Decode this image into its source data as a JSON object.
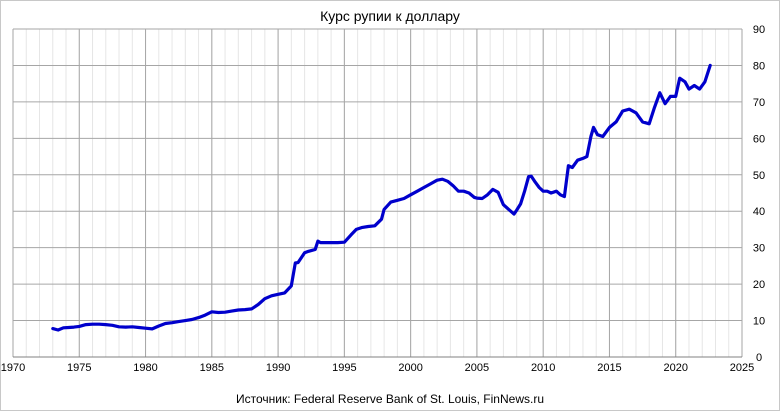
{
  "chart_data": {
    "type": "line",
    "title": "Курс рупии к доллару",
    "source": "Источник: Federal Reserve Bank of St. Louis, FinNews.ru",
    "xlabel": "",
    "ylabel": "",
    "xlim": [
      1970,
      2025
    ],
    "ylim": [
      0,
      90
    ],
    "x_ticks": [
      "1970",
      "1975",
      "1980",
      "1985",
      "1990",
      "1995",
      "2000",
      "2005",
      "2010",
      "2015",
      "2020",
      "2025"
    ],
    "y_ticks": [
      "0",
      "10",
      "20",
      "30",
      "40",
      "50",
      "60",
      "70",
      "80",
      "90"
    ],
    "grid": true,
    "legend": "none",
    "line_color": "#0000cc",
    "series": [
      {
        "x": [
          1973.0,
          1973.4,
          1973.8,
          1974.2,
          1974.6,
          1975.0,
          1975.5,
          1976.0,
          1976.5,
          1977.0,
          1977.5,
          1978.0,
          1978.5,
          1979.0,
          1979.5,
          1980.0,
          1980.5,
          1981.0,
          1981.5,
          1982.0,
          1982.5,
          1983.0,
          1983.5,
          1984.0,
          1984.5,
          1985.0,
          1985.5,
          1986.0,
          1986.5,
          1987.0,
          1987.5,
          1988.0,
          1988.5,
          1989.0,
          1989.5,
          1990.0,
          1990.5,
          1991.0,
          1991.3,
          1991.5,
          1992.0,
          1992.3,
          1992.8,
          1993.0,
          1993.2,
          1993.6,
          1994.0,
          1994.5,
          1995.0,
          1995.5,
          1995.9,
          1996.3,
          1996.8,
          1997.3,
          1997.8,
          1998.0,
          1998.5,
          1999.0,
          1999.5,
          2000.0,
          2000.5,
          2001.0,
          2001.5,
          2002.0,
          2002.4,
          2002.8,
          2003.2,
          2003.6,
          2004.0,
          2004.4,
          2004.8,
          2005.0,
          2005.4,
          2005.8,
          2006.2,
          2006.6,
          2007.0,
          2007.4,
          2007.8,
          2008.0,
          2008.3,
          2008.6,
          2008.9,
          2009.1,
          2009.4,
          2009.7,
          2010.0,
          2010.3,
          2010.6,
          2011.0,
          2011.3,
          2011.6,
          2011.9,
          2012.2,
          2012.6,
          2013.0,
          2013.3,
          2013.6,
          2013.8,
          2014.1,
          2014.5,
          2015.0,
          2015.5,
          2016.0,
          2016.5,
          2017.0,
          2017.5,
          2018.0,
          2018.4,
          2018.8,
          2019.2,
          2019.6,
          2020.0,
          2020.3,
          2020.7,
          2021.0,
          2021.4,
          2021.8,
          2022.2,
          2022.6
        ],
        "y": [
          7.8,
          7.4,
          8.0,
          8.1,
          8.2,
          8.4,
          8.9,
          9.0,
          9.0,
          8.9,
          8.7,
          8.3,
          8.2,
          8.3,
          8.1,
          7.9,
          7.7,
          8.5,
          9.2,
          9.4,
          9.7,
          10.0,
          10.3,
          10.8,
          11.5,
          12.4,
          12.2,
          12.3,
          12.6,
          12.9,
          13.0,
          13.2,
          14.4,
          16.0,
          16.8,
          17.2,
          17.6,
          19.5,
          25.8,
          25.9,
          28.6,
          29.0,
          29.5,
          31.8,
          31.4,
          31.4,
          31.4,
          31.4,
          31.5,
          33.5,
          35.0,
          35.5,
          35.8,
          36.0,
          37.8,
          40.5,
          42.5,
          43.0,
          43.5,
          44.5,
          45.5,
          46.5,
          47.5,
          48.5,
          48.8,
          48.2,
          47.0,
          45.5,
          45.5,
          45.0,
          43.8,
          43.6,
          43.5,
          44.5,
          46.0,
          45.2,
          41.8,
          40.5,
          39.2,
          40.3,
          42.0,
          45.5,
          49.5,
          49.6,
          48.0,
          46.5,
          45.5,
          45.5,
          45.0,
          45.5,
          44.5,
          44.0,
          52.5,
          52.0,
          54.0,
          54.5,
          55.0,
          60.5,
          63.0,
          61.0,
          60.5,
          63.0,
          64.5,
          67.5,
          68.0,
          67.0,
          64.5,
          64.0,
          68.5,
          72.5,
          69.5,
          71.5,
          71.5,
          76.5,
          75.5,
          73.5,
          74.5,
          73.5,
          75.5,
          80.0
        ]
      }
    ]
  }
}
